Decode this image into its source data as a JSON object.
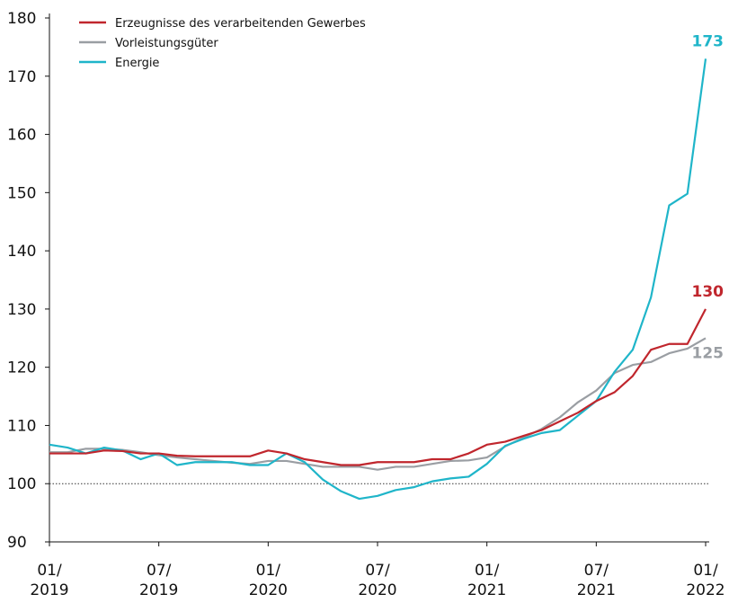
{
  "chart_data": {
    "type": "line",
    "categories": [
      "01/ 2019",
      null,
      null,
      null,
      null,
      null,
      "07/ 2019",
      null,
      null,
      null,
      null,
      null,
      "01/ 2020",
      null,
      null,
      null,
      null,
      null,
      "07/ 2020",
      null,
      null,
      null,
      null,
      null,
      "01/ 2021",
      null,
      null,
      null,
      null,
      null,
      "07/ 2021",
      null,
      null,
      null,
      null,
      null,
      "01/ 2022"
    ],
    "series": [
      {
        "name": "Erzeugnisse des verarbeitenden Gewerbes",
        "color": "#c0262d",
        "values": [
          105.2,
          105.2,
          105.2,
          105.7,
          105.6,
          105.2,
          105.2,
          104.8,
          104.7,
          104.7,
          104.7,
          104.7,
          105.7,
          105.2,
          104.2,
          103.7,
          103.2,
          103.2,
          103.7,
          103.7,
          103.7,
          104.2,
          104.2,
          105.2,
          106.7,
          107.2,
          108.2,
          109.2,
          110.7,
          112.2,
          114.2,
          115.7,
          118.5,
          123.0,
          124.0,
          124.0,
          130
        ]
      },
      {
        "name": "Vorleistungsgüter",
        "color": "#9a9ea3",
        "values": [
          105.4,
          105.4,
          106.0,
          106.0,
          105.8,
          105.4,
          104.9,
          104.5,
          104.2,
          103.9,
          103.6,
          103.4,
          103.9,
          103.9,
          103.4,
          102.9,
          102.9,
          102.9,
          102.4,
          102.9,
          102.9,
          103.4,
          103.9,
          104.0,
          104.5,
          106.4,
          107.9,
          109.4,
          111.4,
          114.0,
          116.0,
          119.0,
          120.4,
          120.9,
          122.4,
          123.2,
          125
        ]
      },
      {
        "name": "Energie",
        "color": "#1fb5c9",
        "values": [
          106.7,
          106.2,
          105.2,
          106.2,
          105.7,
          104.2,
          105.2,
          103.2,
          103.7,
          103.7,
          103.7,
          103.2,
          103.2,
          105.2,
          103.7,
          100.7,
          98.7,
          97.4,
          97.9,
          98.9,
          99.4,
          100.4,
          100.9,
          101.2,
          103.4,
          106.5,
          107.7,
          108.7,
          109.2,
          111.7,
          114.2,
          119.2,
          123.0,
          132.0,
          147.8,
          149.8,
          173
        ]
      }
    ],
    "ylim": [
      90,
      180
    ],
    "yticks": [
      90,
      100,
      110,
      120,
      130,
      140,
      150,
      160,
      170,
      180
    ],
    "reference_line": 100,
    "legend": "top-left"
  }
}
